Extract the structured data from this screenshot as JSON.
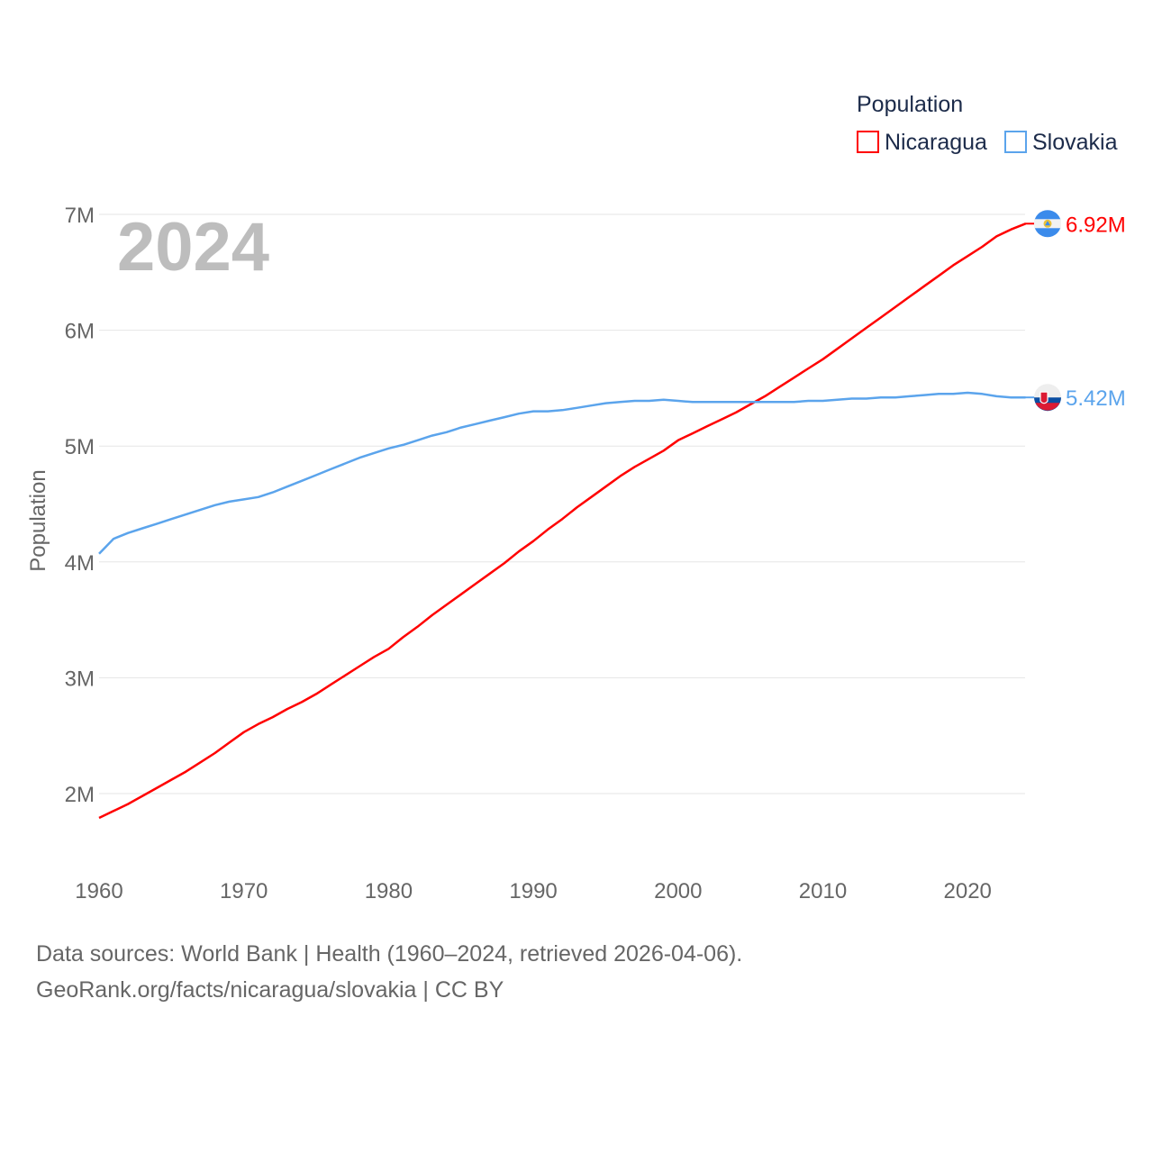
{
  "chart_data": {
    "type": "line",
    "year_label": "2024",
    "ylabel": "Population",
    "legend_title": "Population",
    "legend_position": "top-right",
    "ylim": [
      1.45,
      7.1
    ],
    "xlim": [
      1960,
      2024
    ],
    "y_ticks": [
      {
        "v": 2,
        "label": "2M"
      },
      {
        "v": 3,
        "label": "3M"
      },
      {
        "v": 4,
        "label": "4M"
      },
      {
        "v": 5,
        "label": "5M"
      },
      {
        "v": 6,
        "label": "6M"
      },
      {
        "v": 7,
        "label": "7M"
      }
    ],
    "x_ticks": [
      1960,
      1970,
      1980,
      1990,
      2000,
      2010,
      2020
    ],
    "x_start": 1960,
    "series": [
      {
        "name": "Nicaragua",
        "color": "#ff0000",
        "end_label": "6.92M",
        "flag": "nicaragua-flag",
        "values": [
          1.79,
          1.85,
          1.91,
          1.98,
          2.05,
          2.12,
          2.19,
          2.27,
          2.35,
          2.44,
          2.53,
          2.6,
          2.66,
          2.73,
          2.79,
          2.86,
          2.94,
          3.02,
          3.1,
          3.18,
          3.25,
          3.35,
          3.44,
          3.54,
          3.63,
          3.72,
          3.81,
          3.9,
          3.99,
          4.09,
          4.18,
          4.28,
          4.37,
          4.47,
          4.56,
          4.65,
          4.74,
          4.82,
          4.89,
          4.96,
          5.05,
          5.11,
          5.17,
          5.23,
          5.29,
          5.36,
          5.43,
          5.51,
          5.59,
          5.67,
          5.75,
          5.84,
          5.93,
          6.02,
          6.11,
          6.2,
          6.29,
          6.38,
          6.47,
          6.56,
          6.64,
          6.72,
          6.81,
          6.87,
          6.92
        ]
      },
      {
        "name": "Slovakia",
        "color": "#5ba4ec",
        "end_label": "5.42M",
        "flag": "slovakia-flag",
        "values": [
          4.07,
          4.2,
          4.25,
          4.29,
          4.33,
          4.37,
          4.41,
          4.45,
          4.49,
          4.52,
          4.54,
          4.56,
          4.6,
          4.65,
          4.7,
          4.75,
          4.8,
          4.85,
          4.9,
          4.94,
          4.98,
          5.01,
          5.05,
          5.09,
          5.12,
          5.16,
          5.19,
          5.22,
          5.25,
          5.28,
          5.3,
          5.3,
          5.31,
          5.33,
          5.35,
          5.37,
          5.38,
          5.39,
          5.39,
          5.4,
          5.39,
          5.38,
          5.38,
          5.38,
          5.38,
          5.38,
          5.38,
          5.38,
          5.38,
          5.39,
          5.39,
          5.4,
          5.41,
          5.41,
          5.42,
          5.42,
          5.43,
          5.44,
          5.45,
          5.45,
          5.46,
          5.45,
          5.43,
          5.42,
          5.42
        ]
      }
    ]
  },
  "footer": {
    "line1": "Data sources: World Bank | Health (1960–2024, retrieved 2026-04-06).",
    "line2": "GeoRank.org/facts/nicaragua/slovakia | CC BY"
  }
}
